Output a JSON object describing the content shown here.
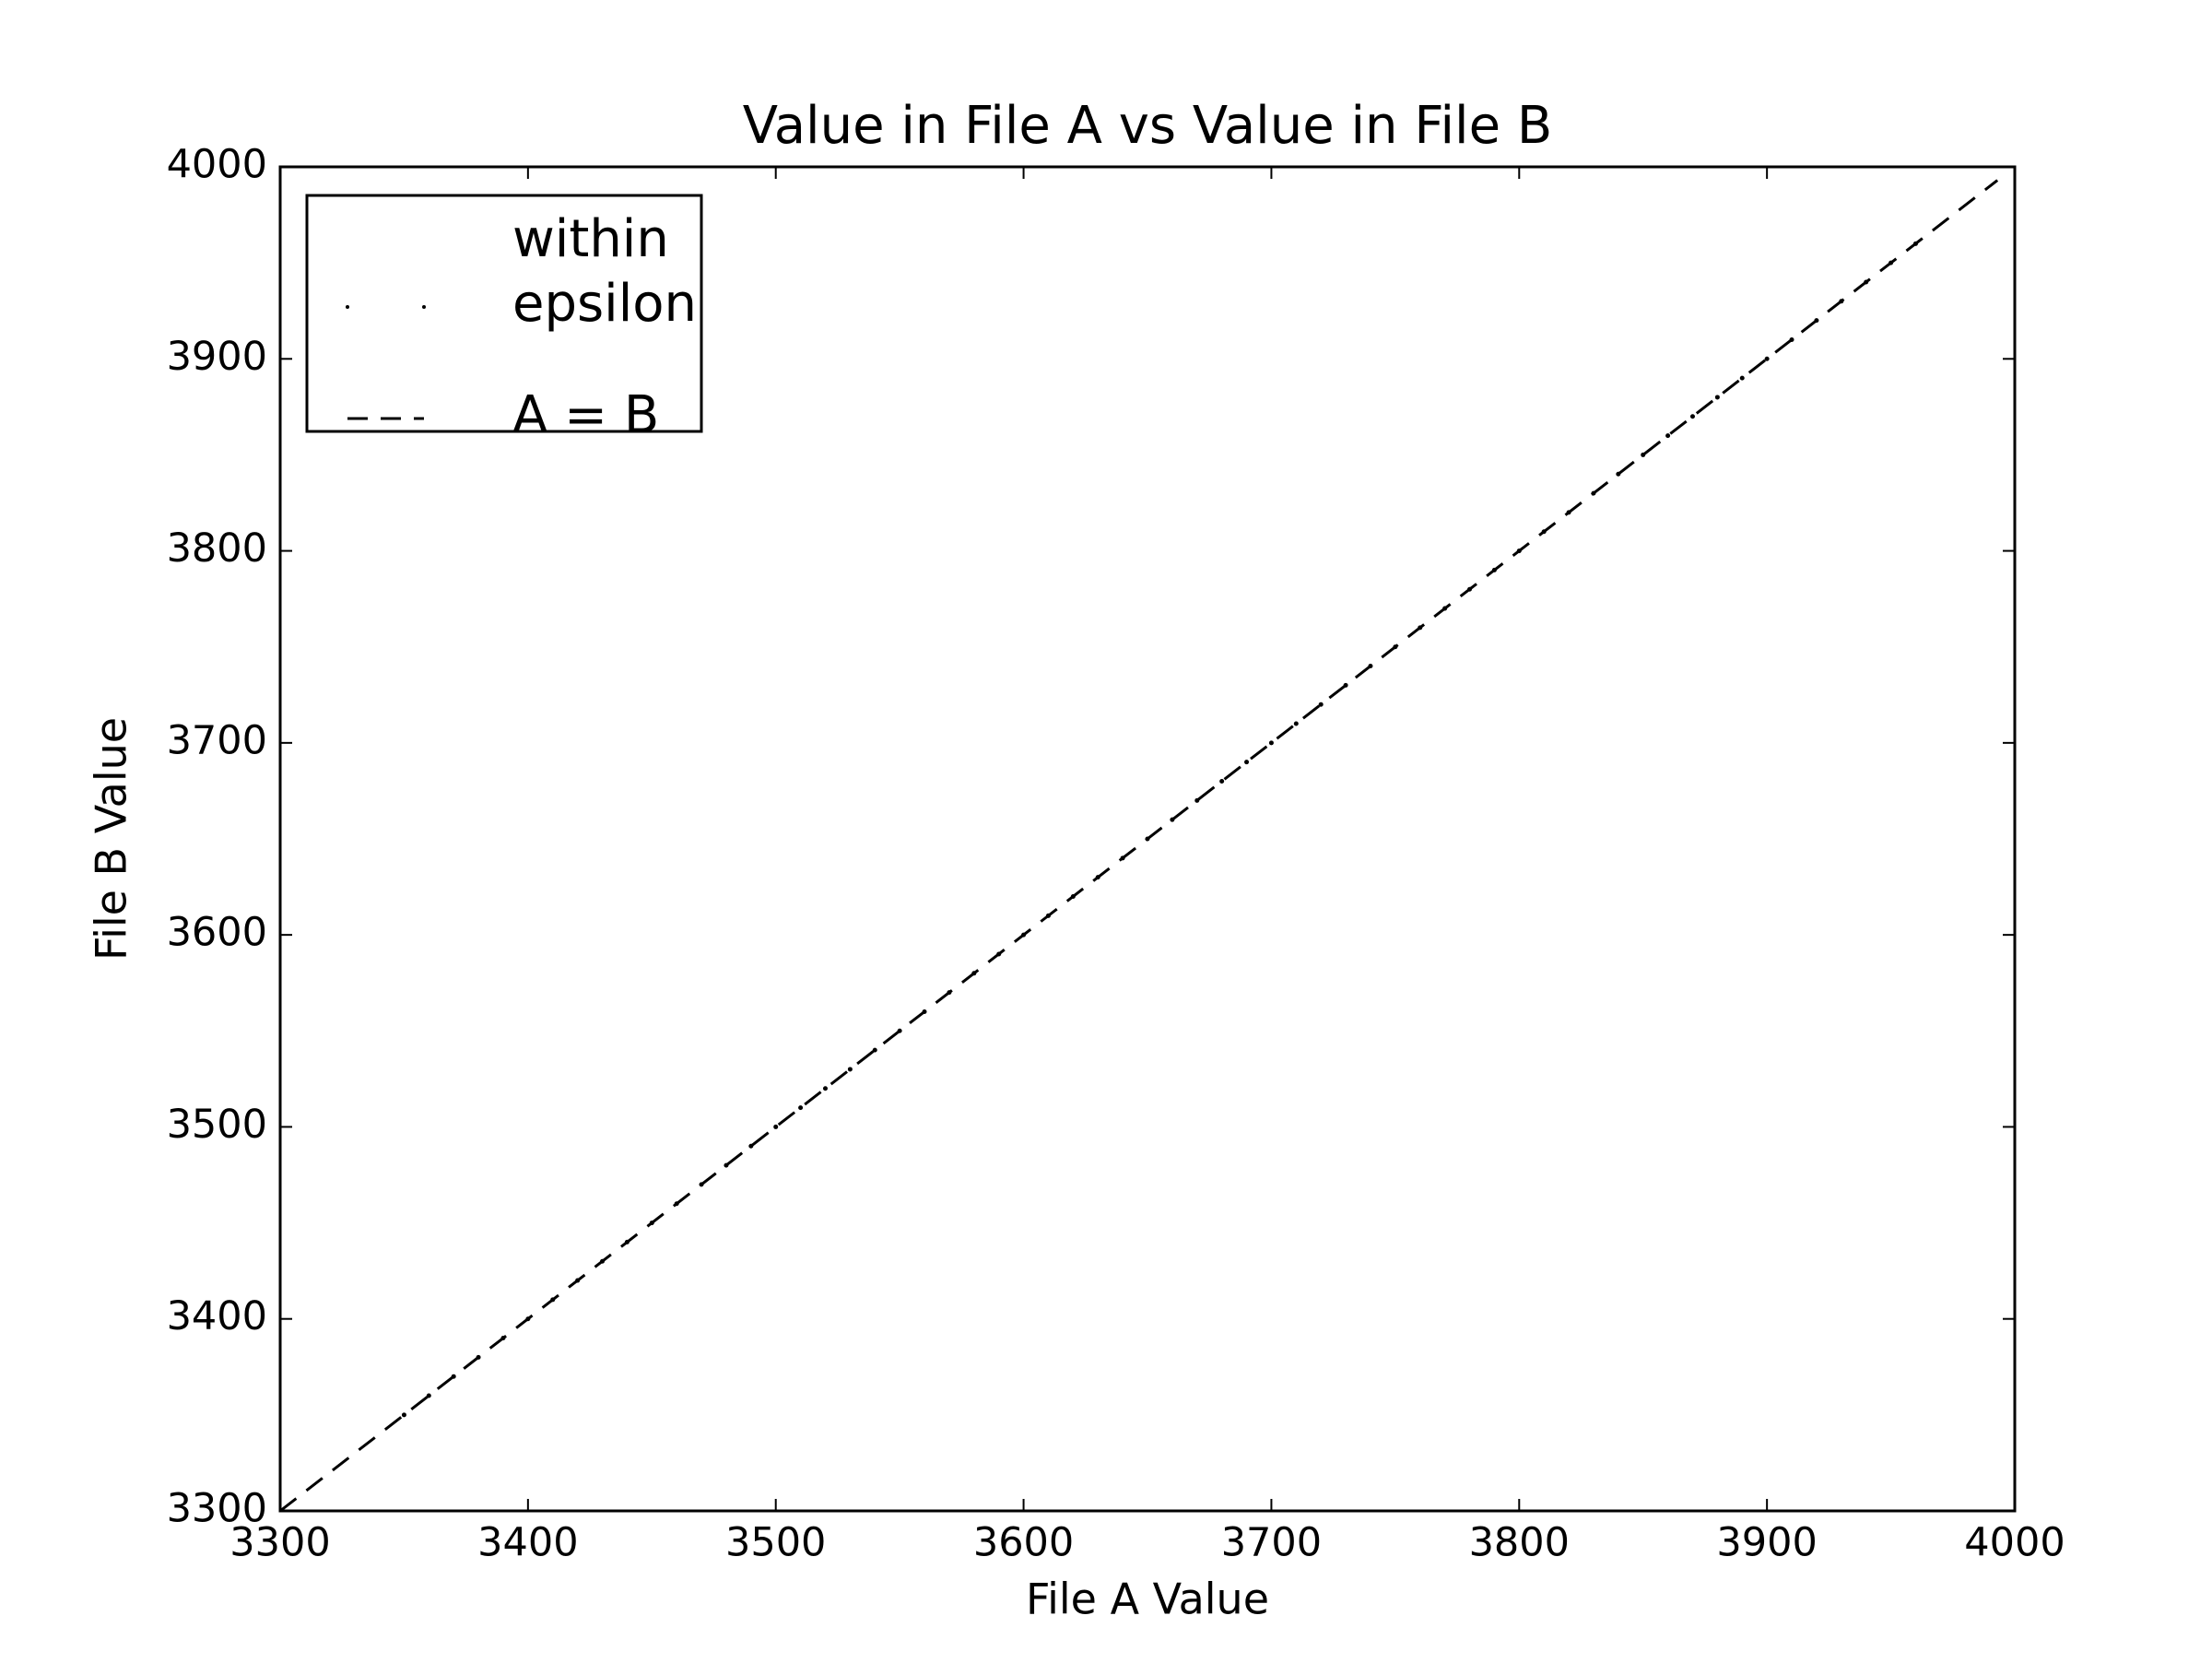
{
  "chart_data": {
    "type": "scatter",
    "title": "Value in File A vs Value in File B",
    "x_label": "File A Value",
    "y_label": "File B Value",
    "xlim": [
      3300,
      4000
    ],
    "ylim": [
      3300,
      4000
    ],
    "xticks": [
      3300,
      3400,
      3500,
      3600,
      3700,
      3800,
      3900,
      4000
    ],
    "yticks": [
      3300,
      3400,
      3500,
      3600,
      3700,
      3800,
      3900,
      4000
    ],
    "legend": "upper left",
    "series": [
      {
        "name": "within\nepsilon",
        "color": "#000000",
        "marker": ".",
        "x": [
          3350,
          3360,
          3370,
          3380,
          3390,
          3400,
          3410,
          3420,
          3430,
          3440,
          3450,
          3460,
          3470,
          3480,
          3490,
          3500,
          3510,
          3520,
          3530,
          3540,
          3550,
          3560,
          3570,
          3580,
          3590,
          3600,
          3610,
          3620,
          3630,
          3640,
          3650,
          3660,
          3670,
          3680,
          3690,
          3700,
          3710,
          3720,
          3730,
          3740,
          3750,
          3760,
          3770,
          3780,
          3790,
          3800,
          3810,
          3820,
          3830,
          3840,
          3850,
          3860,
          3870,
          3880,
          3890,
          3900,
          3910,
          3920,
          3930,
          3940,
          3950,
          3960
        ],
        "values": [
          3350,
          3360,
          3370,
          3380,
          3390,
          3400,
          3410,
          3420,
          3430,
          3440,
          3450,
          3460,
          3470,
          3480,
          3490,
          3500,
          3510,
          3520,
          3530,
          3540,
          3550,
          3560,
          3570,
          3580,
          3590,
          3600,
          3610,
          3620,
          3630,
          3640,
          3650,
          3660,
          3670,
          3680,
          3690,
          3700,
          3710,
          3720,
          3730,
          3740,
          3750,
          3760,
          3770,
          3780,
          3790,
          3800,
          3810,
          3820,
          3830,
          3840,
          3850,
          3860,
          3870,
          3880,
          3890,
          3900,
          3910,
          3920,
          3930,
          3940,
          3950,
          3960
        ]
      },
      {
        "name": "A = B",
        "color": "#000000",
        "linestyle": "--",
        "x": [
          3300,
          3993
        ],
        "values": [
          3300,
          3993
        ]
      }
    ]
  }
}
